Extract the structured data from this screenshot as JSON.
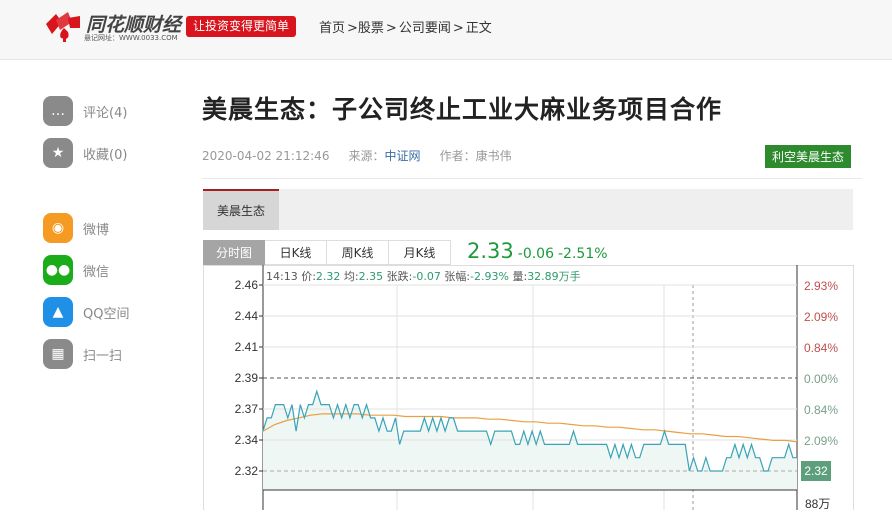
{
  "header": {
    "logo_text": "同花顺财经",
    "logo_sub": "悬记网址：WWW.0033.COM",
    "slogan": "让投资变得更简单",
    "breadcrumb": [
      "首页",
      ">股票",
      ">",
      "公司要闻",
      ">",
      "正文"
    ]
  },
  "sidebar": {
    "items": [
      {
        "label": "评论(4)",
        "icon": "comment-icon",
        "color": "#8a8a8a"
      },
      {
        "label": "收藏(0)",
        "icon": "star-icon",
        "color": "#8a8a8a"
      },
      {
        "label": "微博",
        "icon": "weibo-icon",
        "color": "#f59a23"
      },
      {
        "label": "微信",
        "icon": "wechat-icon",
        "color": "#1aad19"
      },
      {
        "label": "QQ空间",
        "icon": "qq-icon",
        "color": "#1f90e6"
      },
      {
        "label": "扫一扫",
        "icon": "qrcode-icon",
        "color": "#8a8a8a"
      }
    ]
  },
  "article": {
    "title": "美晨生态：子公司终止工业大麻业务项目合作",
    "datetime": "2020-04-02 21:12:46",
    "source_label": "来源：",
    "source": "中证网",
    "author": "作者：康书伟",
    "tag": "利空美晨生态"
  },
  "stock": {
    "tab": "美晨生态",
    "chart_tabs": [
      "分时图",
      "日K线",
      "周K线",
      "月K线"
    ],
    "active_tab": 0,
    "price": "2.33",
    "change": "-0.06",
    "change_pct": "-2.51%",
    "info": {
      "time": "14:13",
      "price_label": "价:",
      "price": "2.32",
      "avg_label": "均:",
      "avg": "2.35",
      "chg_label": "张跌:",
      "chg": "-0.07",
      "pct_label": "张幅:",
      "pct": "-2.93%",
      "vol_label": "量:",
      "vol": "32.89万手"
    },
    "current_badge": "2.32",
    "volume_axis_label": "88万"
  },
  "chart_data": {
    "type": "line",
    "prev_close": 2.39,
    "ylim": [
      2.32,
      2.46
    ],
    "y_ticks": [
      "2.46",
      "2.44",
      "2.41",
      "2.39",
      "2.37",
      "2.34",
      "2.32"
    ],
    "y_ticks_right": [
      "2.93%",
      "2.09%",
      "0.84%",
      "0.00%",
      "0.84%",
      "2.09%",
      "2.93%"
    ],
    "colors": {
      "price": "#3aa3b8",
      "avg": "#e8a040",
      "up": "#c0504d",
      "down": "#7aa08a"
    },
    "series": [
      {
        "values": [
          2.35,
          2.36,
          2.36,
          2.37,
          2.37,
          2.37,
          2.36,
          2.37,
          2.35,
          2.37,
          2.36,
          2.37,
          2.37,
          2.38,
          2.37,
          2.37,
          2.37,
          2.36,
          2.37,
          2.36,
          2.37,
          2.36,
          2.37,
          2.37,
          2.36,
          2.37,
          2.36,
          2.36,
          2.35,
          2.36,
          2.35,
          2.35,
          2.36,
          2.34,
          2.35,
          2.35,
          2.35,
          2.35,
          2.35,
          2.36,
          2.35,
          2.36,
          2.35,
          2.36,
          2.35,
          2.36,
          2.36,
          2.35,
          2.35,
          2.35,
          2.35,
          2.35,
          2.35,
          2.35,
          2.35,
          2.34,
          2.35,
          2.35,
          2.35,
          2.35,
          2.35,
          2.34,
          2.34,
          2.35,
          2.34,
          2.35,
          2.34,
          2.35,
          2.34,
          2.34,
          2.34,
          2.34,
          2.34,
          2.34,
          2.34,
          2.35,
          2.34,
          2.34,
          2.34,
          2.34,
          2.34,
          2.34,
          2.34,
          2.34,
          2.33,
          2.34,
          2.33,
          2.34,
          2.33,
          2.34,
          2.33,
          2.33,
          2.34,
          2.34,
          2.34,
          2.34,
          2.34,
          2.35,
          2.34,
          2.34,
          2.34,
          2.34,
          2.34,
          2.32,
          2.33,
          2.32,
          2.32,
          2.33,
          2.32,
          2.32,
          2.32,
          2.32,
          2.33,
          2.33,
          2.34,
          2.33,
          2.34,
          2.33,
          2.34,
          2.33,
          2.33,
          2.32,
          2.32,
          2.33,
          2.33,
          2.33,
          2.33,
          2.34,
          2.33,
          2.33
        ]
      },
      {
        "values": [
          2.35,
          2.355,
          2.358,
          2.36,
          2.362,
          2.363,
          2.363,
          2.363,
          2.363,
          2.362,
          2.362,
          2.362,
          2.361,
          2.361,
          2.361,
          2.361,
          2.36,
          2.36,
          2.36,
          2.359,
          2.359,
          2.358,
          2.357,
          2.357,
          2.356,
          2.356,
          2.355,
          2.354,
          2.354,
          2.353,
          2.353,
          2.352,
          2.351,
          2.351,
          2.35,
          2.349,
          2.348,
          2.348,
          2.347,
          2.346,
          2.346,
          2.345,
          2.344,
          2.343,
          2.343,
          2.342
        ]
      }
    ]
  }
}
